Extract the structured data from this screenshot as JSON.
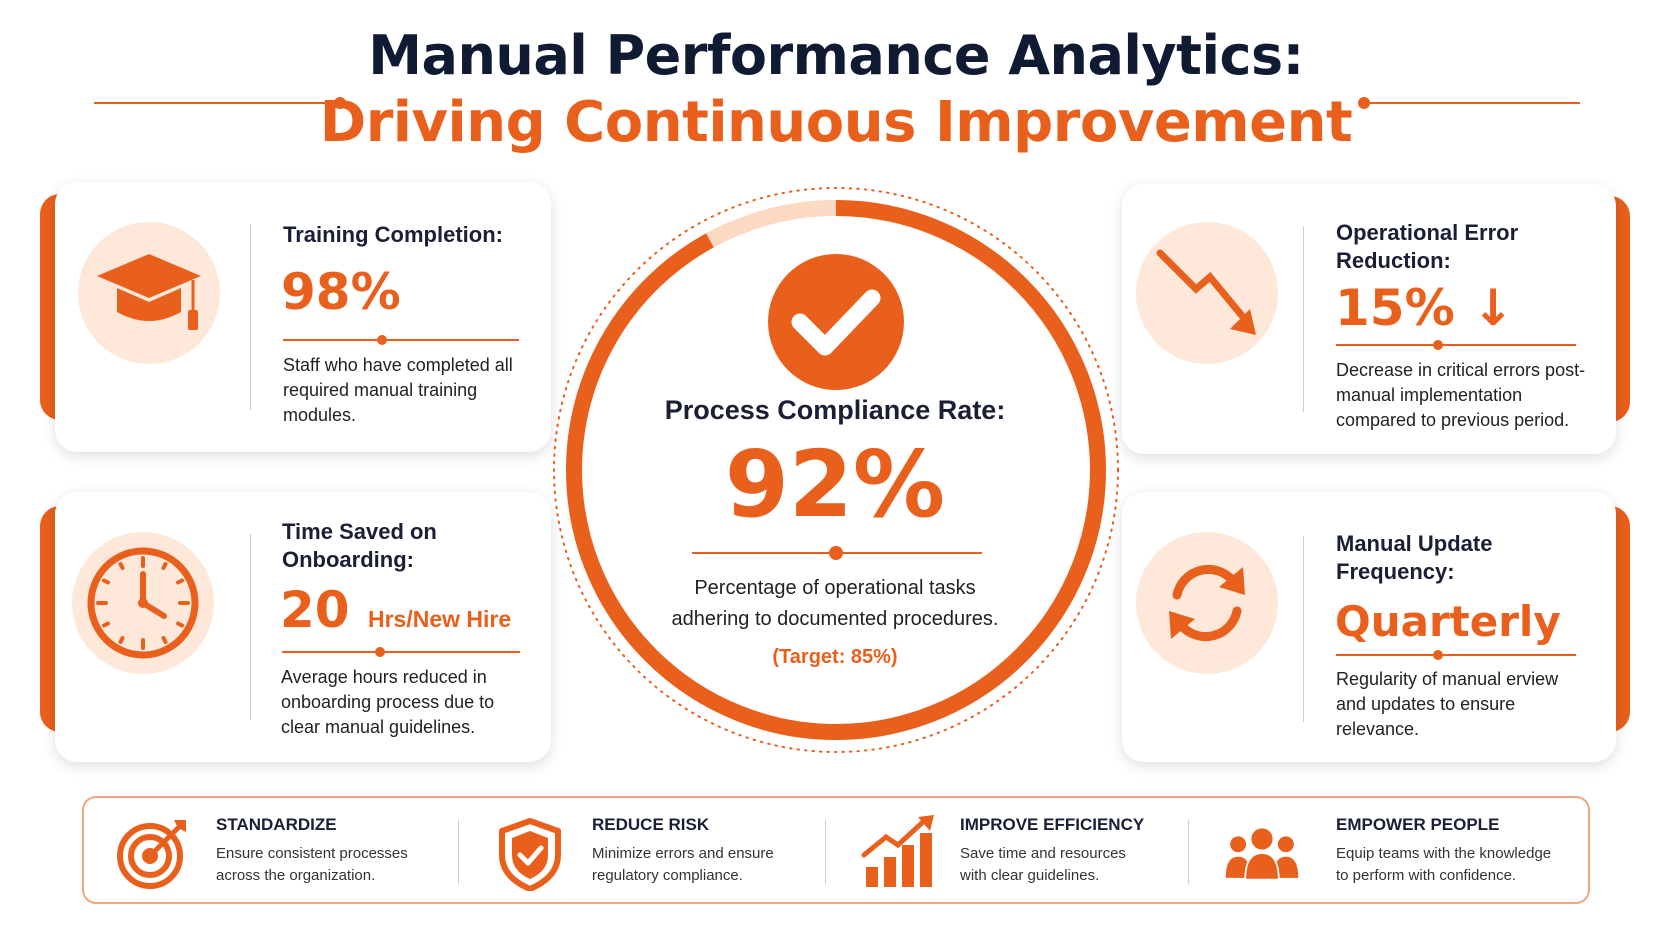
{
  "header": {
    "title_line1": "Manual Performance Analytics:",
    "title_line2": "Driving Continuous Improvement"
  },
  "colors": {
    "accent": "#e8601c",
    "accent_light": "#fde8da",
    "navy": "#111a33"
  },
  "center": {
    "icon": "checkmark-icon",
    "label": "Process Compliance Rate:",
    "value": "92%",
    "value_fraction": 0.92,
    "description_line1": "Percentage of operational tasks",
    "description_line2": "adhering to documented procedures.",
    "target": "(Target: 85%)"
  },
  "metrics": {
    "training": {
      "icon": "graduation-cap-icon",
      "label": "Training Completion:",
      "value": "98%",
      "description": "Staff who have completed all required manual training modules."
    },
    "time_saved": {
      "icon": "clock-icon",
      "label_line1": "Time Saved on",
      "label_line2": "Onboarding:",
      "value": "20",
      "unit": "Hrs/New Hire",
      "description": "Average hours reduced in onboarding process due to clear manual guidelines."
    },
    "error_reduction": {
      "icon": "trend-down-icon",
      "label_line1": "Operational Error",
      "label_line2": "Reduction:",
      "value": "15% ↓",
      "description": "Decrease in critical errors post-manual implementation compared to previous period."
    },
    "update_frequency": {
      "icon": "refresh-icon",
      "label_line1": "Manual Update",
      "label_line2": "Frequency:",
      "value": "Quarterly",
      "description": "Regularity of manual erview and updates to ensure relevance."
    }
  },
  "benefits": [
    {
      "icon": "target-icon",
      "title": "STANDARDIZE",
      "line1": "Ensure consistent processes",
      "line2": "across the organization."
    },
    {
      "icon": "shield-check-icon",
      "title": "REDUCE RISK",
      "line1": "Minimize errors and ensure",
      "line2": "regulatory compliance."
    },
    {
      "icon": "growth-chart-icon",
      "title": "IMPROVE EFFICIENCY",
      "line1": "Save time and resources",
      "line2": "with clear guidelines."
    },
    {
      "icon": "people-icon",
      "title": "EMPOWER PEOPLE",
      "line1": "Equip teams with the knowledge",
      "line2": "to perform with confidence."
    }
  ]
}
